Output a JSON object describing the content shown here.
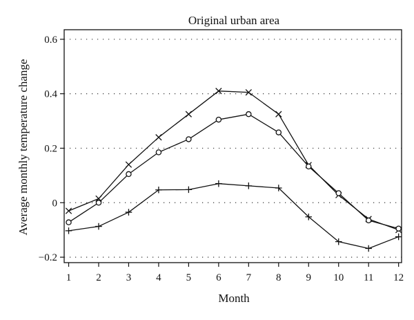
{
  "chart_data": {
    "type": "line",
    "title": "Original urban area",
    "xlabel": "Month",
    "ylabel": "Average monthly temperature change",
    "x": [
      1,
      2,
      3,
      4,
      5,
      6,
      7,
      8,
      9,
      10,
      11,
      12
    ],
    "xlim": [
      0.85,
      12.1
    ],
    "ylim": [
      -0.22,
      0.635
    ],
    "yticks": [
      -0.2,
      0,
      0.2,
      0.4,
      0.6
    ],
    "ytick_labels": [
      "−0.2",
      "0",
      "0.2",
      "0.4",
      "0.6"
    ],
    "xtick_labels": [
      "1",
      "2",
      "3",
      "4",
      "5",
      "6",
      "7",
      "8",
      "9",
      "10",
      "11",
      "12"
    ],
    "grid": "horizontal-dotted",
    "series": [
      {
        "marker": "x",
        "color": "#111111",
        "values": [
          -0.03,
          0.015,
          0.14,
          0.24,
          0.325,
          0.41,
          0.405,
          0.325,
          0.138,
          0.028,
          -0.06,
          -0.1
        ]
      },
      {
        "marker": "o",
        "color": "#111111",
        "values": [
          -0.072,
          0.0,
          0.105,
          0.185,
          0.233,
          0.305,
          0.325,
          0.258,
          0.133,
          0.035,
          -0.065,
          -0.095
        ]
      },
      {
        "marker": "+",
        "color": "#111111",
        "values": [
          -0.103,
          -0.087,
          -0.035,
          0.047,
          0.048,
          0.07,
          0.062,
          0.054,
          -0.052,
          -0.143,
          -0.168,
          -0.125
        ]
      }
    ]
  }
}
